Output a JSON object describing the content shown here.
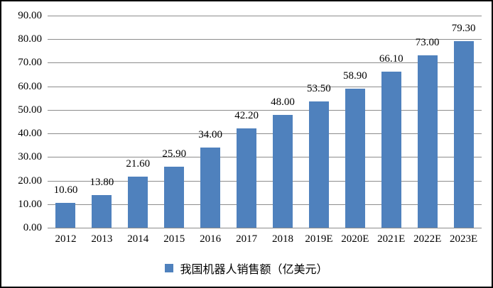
{
  "chart_data": {
    "type": "bar",
    "title": "",
    "categories": [
      "2012",
      "2013",
      "2014",
      "2015",
      "2016",
      "2017",
      "2018",
      "2019E",
      "2020E",
      "2021E",
      "2022E",
      "2023E"
    ],
    "values": [
      10.6,
      13.8,
      21.6,
      25.9,
      34.0,
      42.2,
      48.0,
      53.5,
      58.9,
      66.1,
      73.0,
      79.3
    ],
    "value_labels": [
      "10.60",
      "13.80",
      "21.60",
      "25.90",
      "34.00",
      "42.20",
      "48.00",
      "53.50",
      "58.90",
      "66.10",
      "73.00",
      "79.30"
    ],
    "series_name": "我国机器人销售额（亿美元）",
    "xlabel": "",
    "ylabel": "",
    "ylim": [
      0,
      90
    ],
    "y_tick_step": 10,
    "y_tick_labels": [
      "0.00",
      "10.00",
      "20.00",
      "30.00",
      "40.00",
      "50.00",
      "60.00",
      "70.00",
      "80.00",
      "90.00"
    ],
    "grid": true,
    "legend_position": "bottom",
    "colors": {
      "bar": "#4F81BD",
      "gridline": "#8C8C8C",
      "axis_line": "#8C8C8C",
      "text": "#000000",
      "background": "#FFFFFF",
      "frame_border": "#000000"
    }
  }
}
